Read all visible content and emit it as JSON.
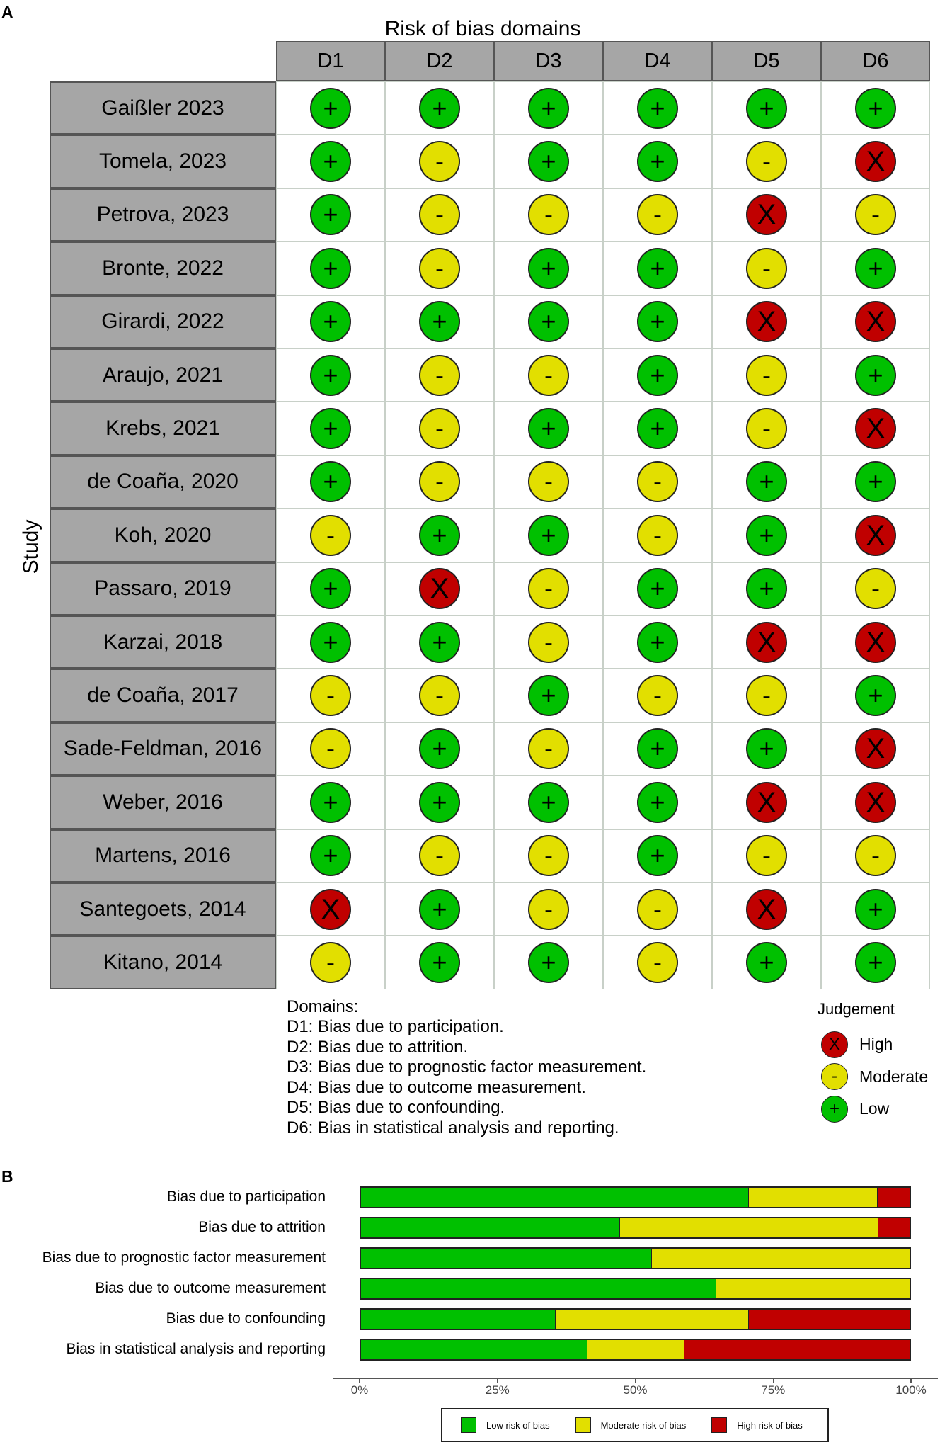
{
  "panel_a": {
    "letter": "A",
    "title": "Risk of bias domains",
    "y_label": "Study",
    "domains": [
      "D1",
      "D2",
      "D3",
      "D4",
      "D5",
      "D6"
    ],
    "studies": [
      {
        "name": "Gaißler 2023",
        "ratings": [
          "+",
          "+",
          "+",
          "+",
          "+",
          "+"
        ]
      },
      {
        "name": "Tomela, 2023",
        "ratings": [
          "+",
          "-",
          "+",
          "+",
          "-",
          "X"
        ]
      },
      {
        "name": "Petrova, 2023",
        "ratings": [
          "+",
          "-",
          "-",
          "-",
          "X",
          "-"
        ]
      },
      {
        "name": "Bronte, 2022",
        "ratings": [
          "+",
          "-",
          "+",
          "+",
          "-",
          "+"
        ]
      },
      {
        "name": "Girardi, 2022",
        "ratings": [
          "+",
          "+",
          "+",
          "+",
          "X",
          "X"
        ]
      },
      {
        "name": "Araujo, 2021",
        "ratings": [
          "+",
          "-",
          "-",
          "+",
          "-",
          "+"
        ]
      },
      {
        "name": "Krebs, 2021",
        "ratings": [
          "+",
          "-",
          "+",
          "+",
          "-",
          "X"
        ]
      },
      {
        "name": "de Coaña, 2020",
        "ratings": [
          "+",
          "-",
          "-",
          "-",
          "+",
          "+"
        ]
      },
      {
        "name": "Koh, 2020",
        "ratings": [
          "-",
          "+",
          "+",
          "-",
          "+",
          "X"
        ]
      },
      {
        "name": "Passaro, 2019",
        "ratings": [
          "+",
          "X",
          "-",
          "+",
          "+",
          "-"
        ]
      },
      {
        "name": "Karzai, 2018",
        "ratings": [
          "+",
          "+",
          "-",
          "+",
          "X",
          "X"
        ]
      },
      {
        "name": "de Coaña, 2017",
        "ratings": [
          "-",
          "-",
          "+",
          "-",
          "-",
          "+"
        ]
      },
      {
        "name": "Sade-Feldman, 2016",
        "ratings": [
          "-",
          "+",
          "-",
          "+",
          "+",
          "X"
        ]
      },
      {
        "name": "Weber, 2016",
        "ratings": [
          "+",
          "+",
          "+",
          "+",
          "X",
          "X"
        ]
      },
      {
        "name": "Martens, 2016",
        "ratings": [
          "+",
          "-",
          "-",
          "+",
          "-",
          "-"
        ]
      },
      {
        "name": "Santegoets, 2014",
        "ratings": [
          "X",
          "+",
          "-",
          "-",
          "X",
          "+"
        ]
      },
      {
        "name": "Kitano, 2014",
        "ratings": [
          "-",
          "+",
          "+",
          "-",
          "+",
          "+"
        ]
      }
    ],
    "domains_heading": "Domains:",
    "domain_descriptions": [
      "D1: Bias due to participation.",
      "D2: Bias due to attrition.",
      "D3: Bias due to prognostic factor measurement.",
      "D4: Bias due to outcome measurement.",
      "D5: Bias due to confounding.",
      "D6: Bias in statistical analysis and reporting."
    ],
    "judgement": {
      "title": "Judgement",
      "items": [
        {
          "symbol": "X",
          "label": "High",
          "color": "#c00000"
        },
        {
          "symbol": "-",
          "label": "Moderate",
          "color": "#e2df00"
        },
        {
          "symbol": "+",
          "label": "Low",
          "color": "#00c000"
        }
      ]
    }
  },
  "panel_b": {
    "letter": "B",
    "tick_labels": [
      "0%",
      "25%",
      "50%",
      "75%",
      "100%"
    ],
    "legend": [
      {
        "label": "Low risk of bias",
        "color": "#00c000"
      },
      {
        "label": "Moderate risk of bias",
        "color": "#e2df00"
      },
      {
        "label": "High risk of bias",
        "color": "#c00000"
      }
    ]
  },
  "chart_data": [
    {
      "type": "table",
      "title": "Risk of bias domains",
      "ylabel": "Study",
      "columns": [
        "D1",
        "D2",
        "D3",
        "D4",
        "D5",
        "D6"
      ],
      "rows": [
        "Gaißler 2023",
        "Tomela, 2023",
        "Petrova, 2023",
        "Bronte, 2022",
        "Girardi, 2022",
        "Araujo, 2021",
        "Krebs, 2021",
        "de Coaña, 2020",
        "Koh, 2020",
        "Passaro, 2019",
        "Karzai, 2018",
        "de Coaña, 2017",
        "Sade-Feldman, 2016",
        "Weber, 2016",
        "Martens, 2016",
        "Santegoets, 2014",
        "Kitano, 2014"
      ],
      "legend_title": "Judgement",
      "legend": [
        "High",
        "Moderate",
        "Low"
      ]
    },
    {
      "type": "bar",
      "stacked": true,
      "orientation": "horizontal",
      "categories": [
        "Bias due to participation",
        "Bias due to attrition",
        "Bias due to prognostic factor measurement",
        "Bias due to outcome measurement",
        "Bias due to confounding",
        "Bias in statistical analysis and reporting"
      ],
      "series": [
        {
          "name": "Low risk of bias",
          "values": [
            70.6,
            47.1,
            52.9,
            64.7,
            35.3,
            41.2
          ]
        },
        {
          "name": "Moderate risk of bias",
          "values": [
            23.5,
            47.1,
            47.1,
            35.3,
            35.3,
            17.6
          ]
        },
        {
          "name": "High risk of bias",
          "values": [
            5.9,
            5.8,
            0,
            0,
            29.4,
            41.2
          ]
        }
      ],
      "xlim": [
        0,
        100
      ],
      "x_ticks": [
        "0%",
        "25%",
        "50%",
        "75%",
        "100%"
      ],
      "legend_position": "bottom"
    }
  ]
}
